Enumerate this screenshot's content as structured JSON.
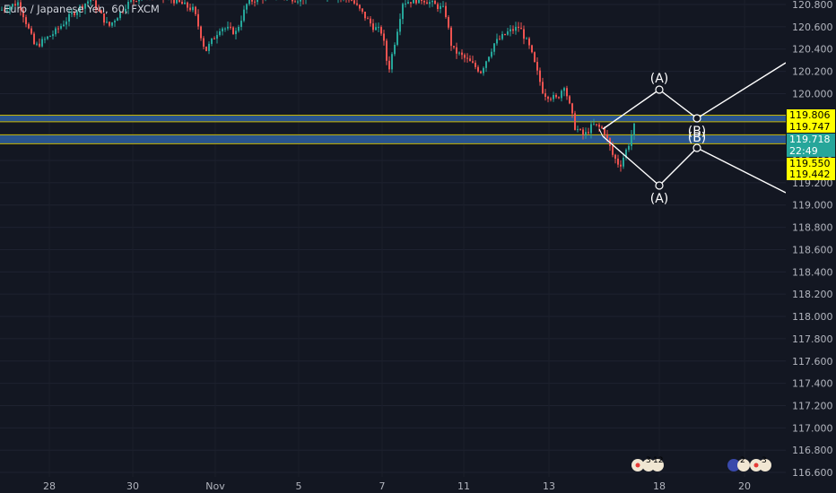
{
  "header": {
    "title": "Euro / Japanese Yen, 60, FXCM"
  },
  "chart_data": {
    "type": "candlestick",
    "title": "Euro / Japanese Yen, 60, FXCM",
    "y_ticks": [
      "120.800",
      "120.600",
      "120.400",
      "120.200",
      "120.000",
      "119.800",
      "119.600",
      "119.400",
      "119.200",
      "119.000",
      "118.800",
      "118.600",
      "118.400",
      "118.200",
      "118.000",
      "117.800",
      "117.600",
      "117.400",
      "117.200",
      "117.000",
      "116.800",
      "116.600"
    ],
    "ylim": [
      116.6,
      120.85
    ],
    "x_ticks": [
      "28",
      "30",
      "Nov",
      "5",
      "7",
      "11",
      "13",
      "18",
      "20"
    ],
    "price_tags": [
      {
        "text": "119.806",
        "value": 119.806,
        "bg": "#ffff00",
        "fg": "#000000"
      },
      {
        "text": "119.747",
        "value": 119.747,
        "bg": "#ffff00",
        "fg": "#000000"
      },
      {
        "text": "119.718",
        "value": 119.718,
        "bg": "#26a69a",
        "fg": "#ffffff"
      },
      {
        "text": "22:49",
        "value": 119.66,
        "bg": "#26a69a",
        "fg": "#ffffff"
      },
      {
        "text": "119.550",
        "value": 119.55,
        "bg": "#ffff00",
        "fg": "#000000"
      },
      {
        "text": "119.442",
        "value": 119.442,
        "bg": "#ffff00",
        "fg": "#000000"
      }
    ],
    "zones": [
      {
        "top": 119.806,
        "bottom": 119.747,
        "color": "#2d5fa0"
      },
      {
        "top": 119.63,
        "bottom": 119.55,
        "color": "#2d5fa0"
      }
    ],
    "wave_labels": {
      "upper_a": "(A)",
      "upper_b": "(B)",
      "lower_b": "(B)",
      "lower_a": "(A)"
    },
    "events": {
      "group1_count_a": "3",
      "group1_count_b": "12",
      "group2_count_a": "2",
      "group2_count_b": "3"
    },
    "colors": {
      "up": "#26a69a",
      "down": "#ef5350",
      "line": "#ffffff",
      "axis_text": "#b2b5be",
      "background": "#131722"
    }
  }
}
